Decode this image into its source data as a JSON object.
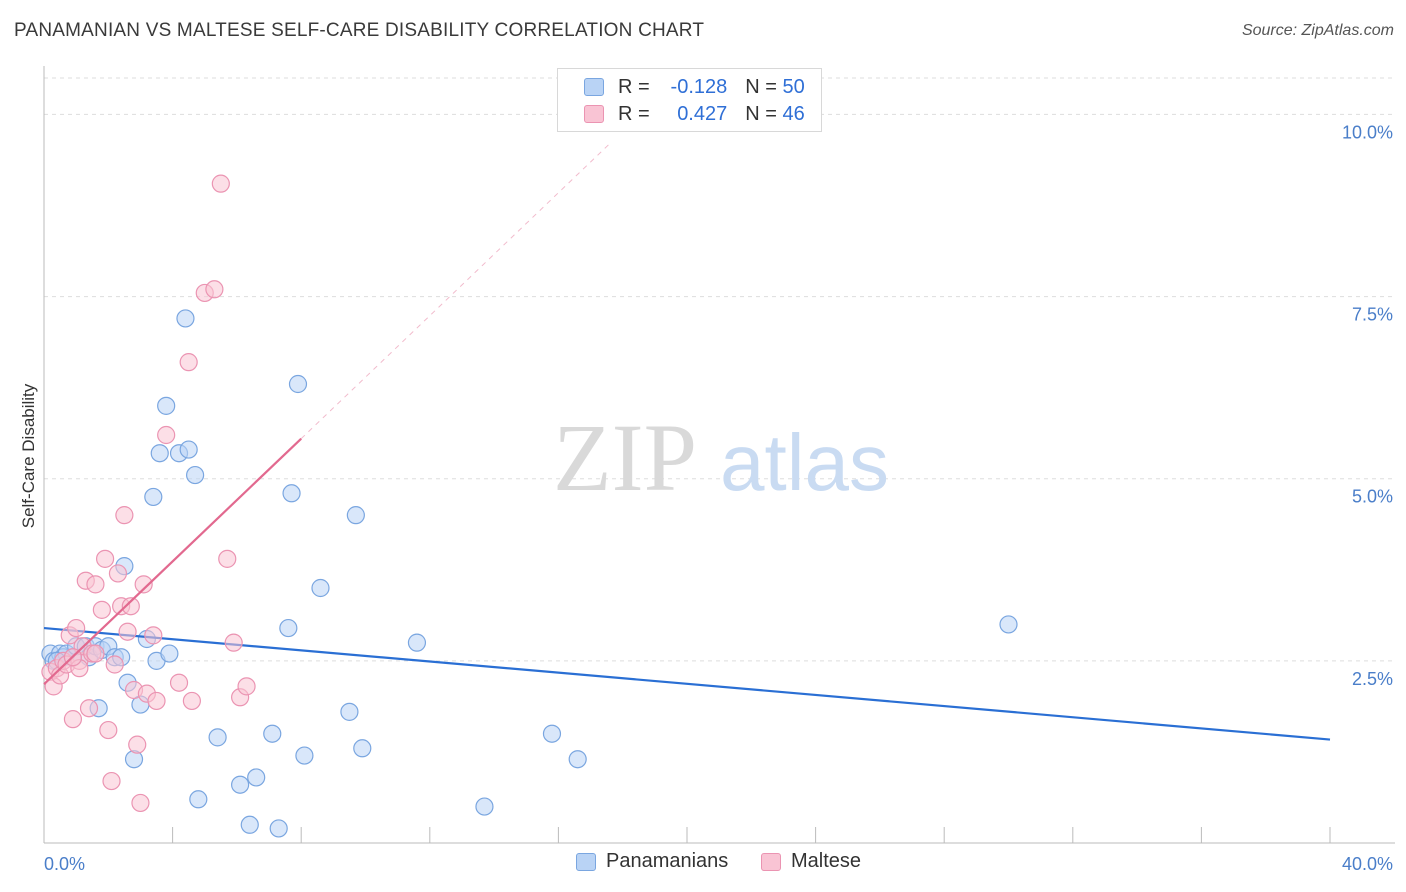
{
  "title": "PANAMANIAN VS MALTESE SELF-CARE DISABILITY CORRELATION CHART",
  "source": "Source: ZipAtlas.com",
  "watermark": {
    "zip": "ZIP",
    "atlas": "atlas"
  },
  "colors": {
    "blue_fill": "#b9d3f5",
    "blue_stroke": "#7aa6e0",
    "blue_line": "#2a6fd4",
    "pink_fill": "#f9c4d4",
    "pink_stroke": "#eb94b2",
    "pink_line": "#e2698f",
    "axis_text": "#4a7ec9",
    "grid": "#dddddd"
  },
  "legend": {
    "r_label": "R =",
    "n_label": "N =",
    "series": [
      {
        "name": "Panamanians",
        "r": "-0.128",
        "n": "50"
      },
      {
        "name": "Maltese",
        "r": "0.427",
        "n": "46"
      }
    ]
  },
  "chart_data": {
    "type": "scatter",
    "title": "PANAMANIAN VS MALTESE SELF-CARE DISABILITY CORRELATION CHART",
    "xlabel": "",
    "ylabel": "Self-Care Disability",
    "xlim": [
      0,
      40
    ],
    "ylim": [
      0,
      10.5
    ],
    "x_tick_labels": [
      {
        "value": 0,
        "label": "0.0%"
      },
      {
        "value": 40,
        "label": "40.0%"
      }
    ],
    "y_tick_labels": [
      {
        "value": 2.5,
        "label": "2.5%"
      },
      {
        "value": 5.0,
        "label": "5.0%"
      },
      {
        "value": 7.5,
        "label": "7.5%"
      },
      {
        "value": 10.0,
        "label": "10.0%"
      }
    ],
    "grid": true,
    "legend_position": "top-center",
    "series": [
      {
        "name": "Panamanians",
        "r": -0.128,
        "n": 50,
        "trend": {
          "x0": 0,
          "y0": 2.95,
          "x1": 40,
          "y1": 1.42
        },
        "points": [
          [
            0.2,
            2.6
          ],
          [
            0.3,
            2.5
          ],
          [
            0.5,
            2.6
          ],
          [
            0.6,
            2.55
          ],
          [
            0.7,
            2.6
          ],
          [
            0.9,
            2.55
          ],
          [
            1.0,
            2.7
          ],
          [
            1.3,
            2.7
          ],
          [
            1.4,
            2.55
          ],
          [
            1.6,
            2.7
          ],
          [
            1.7,
            1.85
          ],
          [
            1.8,
            2.65
          ],
          [
            2.0,
            2.7
          ],
          [
            2.2,
            2.55
          ],
          [
            2.4,
            2.55
          ],
          [
            2.5,
            3.8
          ],
          [
            2.6,
            2.2
          ],
          [
            2.8,
            1.15
          ],
          [
            3.0,
            1.9
          ],
          [
            3.2,
            2.8
          ],
          [
            3.4,
            4.75
          ],
          [
            3.5,
            2.5
          ],
          [
            3.6,
            5.35
          ],
          [
            3.8,
            6.0
          ],
          [
            3.9,
            2.6
          ],
          [
            4.2,
            5.35
          ],
          [
            4.4,
            7.2
          ],
          [
            4.5,
            5.4
          ],
          [
            4.7,
            5.05
          ],
          [
            4.8,
            0.6
          ],
          [
            5.4,
            1.45
          ],
          [
            6.1,
            0.8
          ],
          [
            6.4,
            0.25
          ],
          [
            6.6,
            0.9
          ],
          [
            7.1,
            1.5
          ],
          [
            7.3,
            0.2
          ],
          [
            7.6,
            2.95
          ],
          [
            7.7,
            4.8
          ],
          [
            7.9,
            6.3
          ],
          [
            8.1,
            1.2
          ],
          [
            8.6,
            3.5
          ],
          [
            9.5,
            1.8
          ],
          [
            9.7,
            4.5
          ],
          [
            9.9,
            1.3
          ],
          [
            11.6,
            2.75
          ],
          [
            13.7,
            0.5
          ],
          [
            15.8,
            1.5
          ],
          [
            16.6,
            1.15
          ],
          [
            30.0,
            3.0
          ],
          [
            0.4,
            2.5
          ]
        ]
      },
      {
        "name": "Maltese",
        "r": 0.427,
        "n": 46,
        "trend": {
          "x0": 0,
          "y0": 2.18,
          "x1": 8.0,
          "y1": 5.55
        },
        "trend_extension": {
          "x0": 8.0,
          "y0": 5.55,
          "x1": 17.6,
          "y1": 9.6
        },
        "points": [
          [
            0.2,
            2.35
          ],
          [
            0.3,
            2.15
          ],
          [
            0.4,
            2.4
          ],
          [
            0.5,
            2.3
          ],
          [
            0.6,
            2.5
          ],
          [
            0.7,
            2.45
          ],
          [
            0.8,
            2.85
          ],
          [
            0.9,
            1.7
          ],
          [
            1.0,
            2.95
          ],
          [
            1.1,
            2.5
          ],
          [
            1.2,
            2.7
          ],
          [
            1.3,
            3.6
          ],
          [
            1.4,
            1.85
          ],
          [
            1.5,
            2.6
          ],
          [
            1.6,
            3.55
          ],
          [
            1.8,
            3.2
          ],
          [
            1.9,
            3.9
          ],
          [
            1.6,
            2.6
          ],
          [
            2.0,
            1.55
          ],
          [
            2.1,
            0.85
          ],
          [
            2.2,
            2.45
          ],
          [
            2.3,
            3.7
          ],
          [
            2.4,
            3.25
          ],
          [
            2.5,
            4.5
          ],
          [
            2.6,
            2.9
          ],
          [
            2.7,
            3.25
          ],
          [
            2.8,
            2.1
          ],
          [
            2.9,
            1.35
          ],
          [
            3.0,
            0.55
          ],
          [
            3.1,
            3.55
          ],
          [
            3.2,
            2.05
          ],
          [
            3.4,
            2.85
          ],
          [
            3.5,
            1.95
          ],
          [
            3.8,
            5.6
          ],
          [
            4.2,
            2.2
          ],
          [
            4.5,
            6.6
          ],
          [
            4.6,
            1.95
          ],
          [
            5.0,
            7.55
          ],
          [
            5.3,
            7.6
          ],
          [
            5.5,
            9.05
          ],
          [
            5.7,
            3.9
          ],
          [
            5.9,
            2.75
          ],
          [
            6.1,
            2.0
          ],
          [
            6.3,
            2.15
          ],
          [
            1.1,
            2.4
          ],
          [
            0.9,
            2.55
          ]
        ]
      }
    ]
  }
}
